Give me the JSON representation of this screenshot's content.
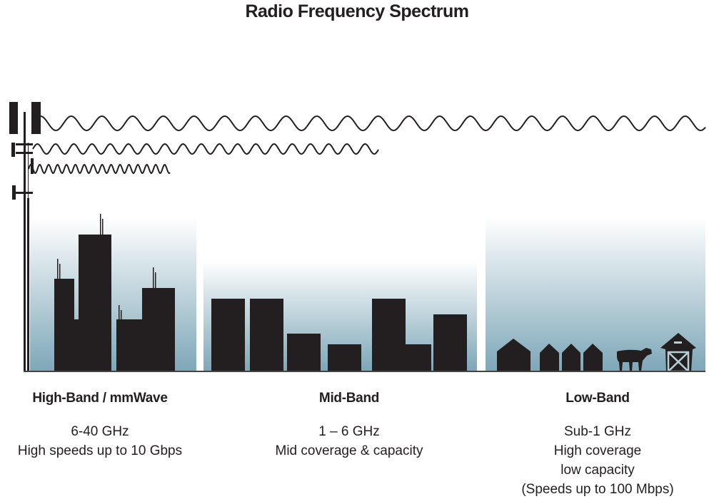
{
  "title": "Radio Frequency Spectrum",
  "colors": {
    "silhouette": "#231f20",
    "sky_bottom": "#7ea7b8",
    "sky_top": "#ffffff"
  },
  "bands": [
    {
      "name": "High-Band / mmWave",
      "lines": [
        "6-40 GHz",
        "High speeds up to 10 Gbps"
      ]
    },
    {
      "name": "Mid-Band",
      "lines": [
        "1 – 6 GHz",
        "Mid coverage & capacity"
      ]
    },
    {
      "name": "Low-Band",
      "lines": [
        "Sub-1 GHz",
        "High coverage",
        "low capacity",
        "(Speeds up to 100 Mbps)"
      ]
    }
  ],
  "icons": [
    "cell-tower-icon",
    "city-skyline",
    "suburb-skyline",
    "house-icon",
    "cow-icon",
    "barn-icon"
  ]
}
